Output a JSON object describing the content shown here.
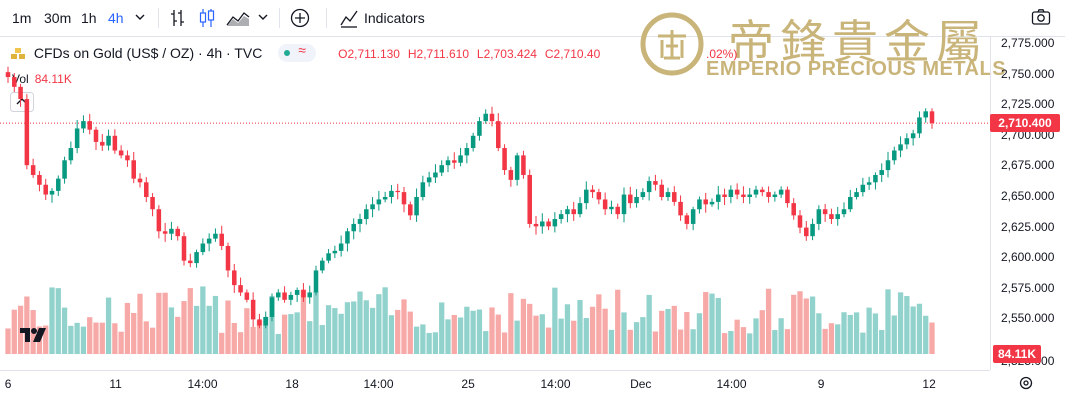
{
  "toolbar": {
    "timeframes": [
      "1m",
      "30m",
      "1h",
      "4h"
    ],
    "active_timeframe": "4h",
    "indicators_label": "Indicators"
  },
  "legend": {
    "symbol": "CFDs on Gold (US$ / OZ) · 4h · TVC",
    "open": "O2,711.130",
    "high": "H2,711.610",
    "low": "L2,703.424",
    "close": "C2,710.40",
    "change_tail": ".02%)",
    "volume_label": "Vol",
    "volume_value": "84.11K"
  },
  "watermark": {
    "chinese": "帝鋒貴金屬",
    "english": "EMPERIO PRECIOUS METALS"
  },
  "price_axis": {
    "ticks": [
      "2,775.000",
      "2,750.000",
      "2,725.000",
      "2,700.000",
      "2,675.000",
      "2,650.000",
      "2,625.000",
      "2,600.000",
      "2,575.000",
      "2,550.000",
      "2,525.000"
    ],
    "current_price_tag": "2,710.400",
    "volume_tag": "84.11K"
  },
  "time_axis": {
    "ticks": [
      "6",
      "11",
      "14:00",
      "18",
      "14:00",
      "25",
      "14:00",
      "Dec",
      "14:00",
      "9",
      "12"
    ]
  },
  "colors": {
    "up": "#089981",
    "down": "#f23645",
    "vol_up": "#92d2cc",
    "vol_down": "#f7a9a7",
    "accent": "#2962ff",
    "gold": "#c9b47a"
  },
  "chart_data": {
    "type": "candlestick",
    "symbol": "CFDs on Gold (US$ / OZ)",
    "interval": "4h",
    "ylim": [
      2525,
      2780
    ],
    "current_price": 2710.4,
    "closes": [
      2748,
      2740,
      2730,
      2676,
      2668,
      2660,
      2652,
      2655,
      2665,
      2680,
      2690,
      2706,
      2712,
      2705,
      2695,
      2692,
      2700,
      2688,
      2684,
      2680,
      2665,
      2662,
      2650,
      2640,
      2622,
      2620,
      2624,
      2618,
      2598,
      2596,
      2605,
      2612,
      2616,
      2620,
      2610,
      2590,
      2578,
      2572,
      2566,
      2550,
      2545,
      2552,
      2568,
      2572,
      2566,
      2570,
      2574,
      2568,
      2572,
      2590,
      2598,
      2604,
      2606,
      2612,
      2622,
      2628,
      2632,
      2640,
      2644,
      2648,
      2650,
      2655,
      2654,
      2644,
      2635,
      2650,
      2662,
      2666,
      2670,
      2676,
      2680,
      2678,
      2684,
      2690,
      2700,
      2712,
      2718,
      2712,
      2690,
      2672,
      2664,
      2684,
      2668,
      2628,
      2626,
      2630,
      2626,
      2632,
      2636,
      2640,
      2636,
      2645,
      2656,
      2654,
      2648,
      2640,
      2642,
      2636,
      2652,
      2645,
      2650,
      2654,
      2663,
      2660,
      2650,
      2654,
      2646,
      2635,
      2628,
      2640,
      2648,
      2644,
      2646,
      2652,
      2650,
      2656,
      2652,
      2650,
      2652,
      2656,
      2654,
      2650,
      2652,
      2656,
      2645,
      2635,
      2625,
      2618,
      2628,
      2640,
      2636,
      2632,
      2636,
      2640,
      2650,
      2654,
      2660,
      2662,
      2668,
      2672,
      2680,
      2688,
      2693,
      2698,
      2702,
      2715,
      2720,
      2710.4
    ],
    "volume_value_last": "84.11K"
  }
}
